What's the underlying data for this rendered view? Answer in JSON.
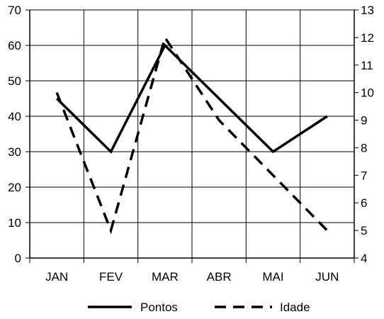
{
  "chart_data": {
    "type": "line",
    "categories": [
      "JAN",
      "FEV",
      "MAR",
      "ABR",
      "MAI",
      "JUN"
    ],
    "y_left": {
      "ylim": [
        0,
        70
      ],
      "ticks": [
        "0",
        "10",
        "20",
        "30",
        "40",
        "50",
        "60",
        "70"
      ]
    },
    "y_right": {
      "ylim": [
        4,
        13
      ],
      "ticks": [
        "4",
        "5",
        "6",
        "7",
        "8",
        "9",
        "10",
        "11",
        "12",
        "13"
      ]
    },
    "grid": true,
    "legend_position": "bottom",
    "series": [
      {
        "name": "Pontos",
        "axis": "left",
        "style": "solid",
        "color": "#000000",
        "values": [
          45,
          30,
          60,
          45,
          30,
          40
        ]
      },
      {
        "name": "Idade",
        "axis": "right",
        "style": "dashed",
        "color": "#000000",
        "values": [
          10,
          5,
          12,
          9,
          7,
          5
        ]
      }
    ]
  }
}
